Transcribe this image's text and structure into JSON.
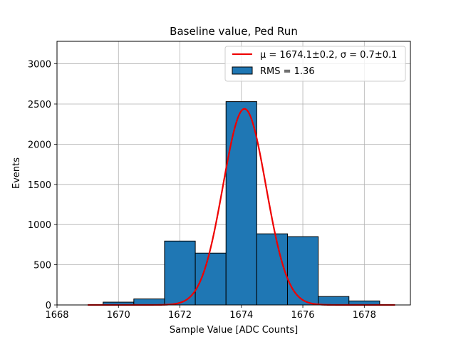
{
  "chart_data": {
    "type": "bar",
    "title": "Baseline value, Ped Run",
    "xlabel": "Sample Value [ADC Counts]",
    "ylabel": "Events",
    "xlim": [
      1668,
      1679.5
    ],
    "ylim": [
      0,
      3280
    ],
    "x_ticks": [
      1668,
      1670,
      1672,
      1674,
      1676,
      1678
    ],
    "y_ticks": [
      0,
      500,
      1000,
      1500,
      2000,
      2500,
      3000
    ],
    "grid": true,
    "legend_position": "top-right",
    "histogram": {
      "name": "RMS = 1.36",
      "color": "#1f77b4",
      "bins": [
        {
          "x0": 1669.5,
          "x1": 1670.5,
          "count": 35
        },
        {
          "x0": 1670.5,
          "x1": 1671.5,
          "count": 75
        },
        {
          "x0": 1671.5,
          "x1": 1672.5,
          "count": 795
        },
        {
          "x0": 1672.5,
          "x1": 1673.5,
          "count": 645
        },
        {
          "x0": 1673.5,
          "x1": 1674.5,
          "count": 2530
        },
        {
          "x0": 1674.5,
          "x1": 1675.5,
          "count": 885
        },
        {
          "x0": 1675.5,
          "x1": 1676.5,
          "count": 850
        },
        {
          "x0": 1676.5,
          "x1": 1677.5,
          "count": 105
        },
        {
          "x0": 1677.5,
          "x1": 1678.5,
          "count": 50
        }
      ]
    },
    "fit": {
      "name": "μ = 1674.1±0.2, σ = 0.7±0.1",
      "color": "#ee0000",
      "type": "gaussian",
      "amplitude": 2440,
      "mu": 1674.1,
      "sigma": 0.7,
      "x_range": [
        1669,
        1679
      ]
    }
  }
}
